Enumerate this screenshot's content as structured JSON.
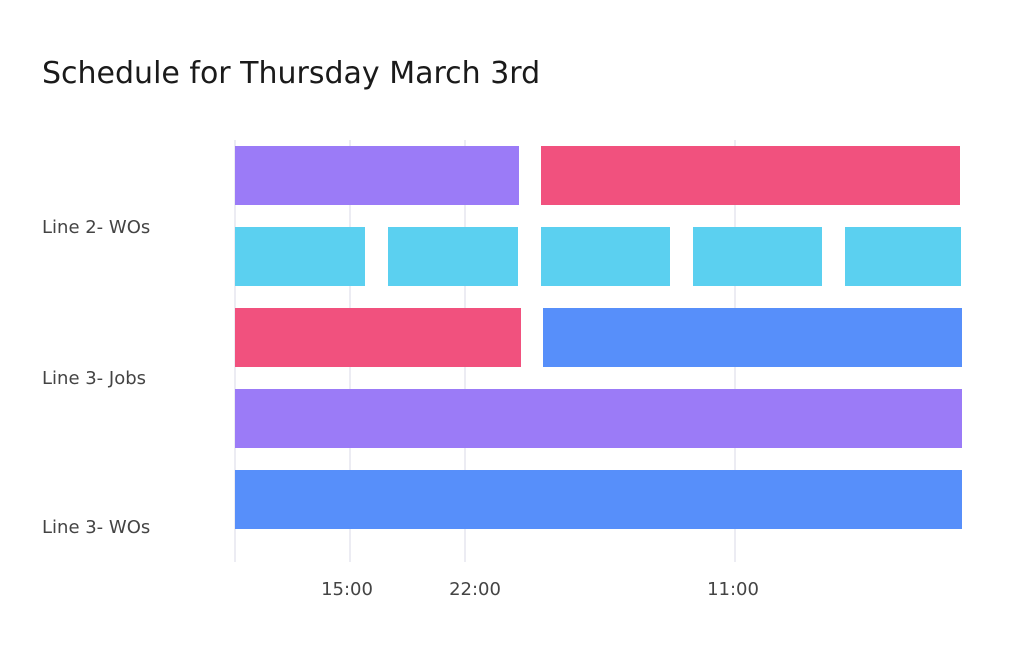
{
  "header": {
    "title": "Schedule for Thursday March 3rd"
  },
  "rows": [
    {
      "label": "Line 2- WOs"
    },
    {
      "label": "Line 3- Jobs"
    },
    {
      "label": "Line 3- WOs"
    }
  ],
  "time_axis": {
    "labels": [
      "15:00",
      "22:00",
      "11:00"
    ]
  }
}
